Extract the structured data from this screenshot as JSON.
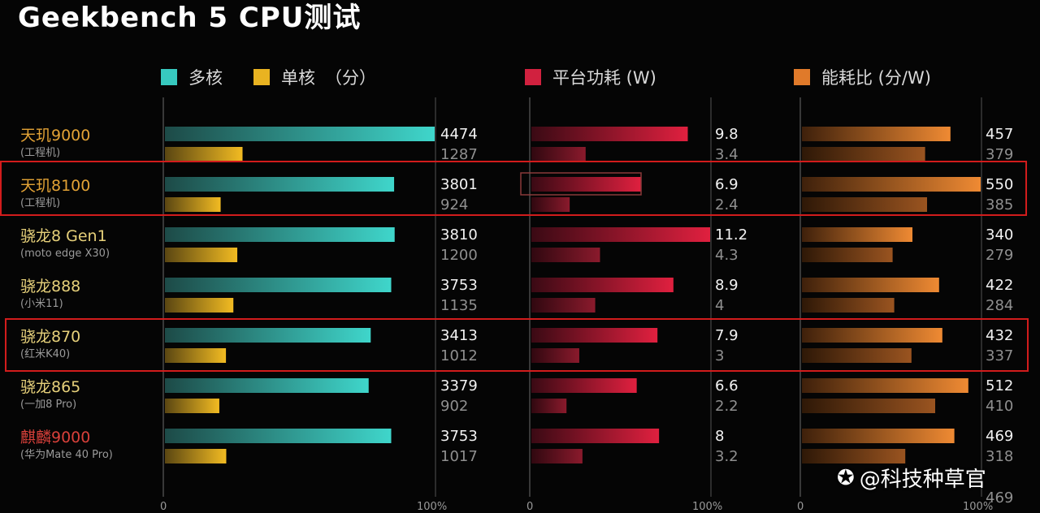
{
  "title": "Geekbench 5 CPU测试",
  "legend": {
    "multi": {
      "label": "多核",
      "color": "#37c9bf"
    },
    "single": {
      "label": "单核",
      "color": "#e9b321"
    },
    "score_unit": "（分）",
    "power": {
      "label": "平台功耗 (W)",
      "color": "#d1213f"
    },
    "efficiency": {
      "label": "能耗比 (分/W)",
      "color": "#e07a2a"
    }
  },
  "axis_ticks": {
    "scores": [
      "0",
      "100%"
    ],
    "power": [
      "0",
      "100%"
    ],
    "efficiency": [
      "0",
      "100%"
    ]
  },
  "watermark": {
    "icon": "weibo-icon",
    "text": "@科技种草官"
  },
  "highlighted_chips": [
    "天玑8100",
    "骁龙870"
  ],
  "chart_data": [
    {
      "type": "bar",
      "title": "Geekbench 5 CPU测试",
      "categories": [
        "天玑9000",
        "天玑8100",
        "骁龙8 Gen1",
        "骁龙888",
        "骁龙870",
        "骁龙865",
        "麒麟9000"
      ],
      "category_sublabels": [
        "(工程机)",
        "(工程机)",
        "(moto edge X30)",
        "(小米11)",
        "(红米K40)",
        "(一加8 Pro)",
        "(华为Mate 40 Pro)"
      ],
      "series": [
        {
          "name": "多核",
          "values": [
            4474,
            3801,
            3810,
            3753,
            3413,
            3379,
            3753
          ]
        },
        {
          "name": "单核",
          "values": [
            1287,
            924,
            1200,
            1135,
            1012,
            902,
            1017
          ]
        }
      ],
      "unit": "（分）",
      "ylim": [
        0,
        4474
      ]
    },
    {
      "type": "bar",
      "title": "平台功耗 (W)",
      "categories": [
        "天玑9000",
        "天玑8100",
        "骁龙8 Gen1",
        "骁龙888",
        "骁龙870",
        "骁龙865",
        "麒麟9000"
      ],
      "series": [
        {
          "name": "多核",
          "values": [
            9.8,
            6.9,
            11.2,
            8.9,
            7.9,
            6.6,
            8.0
          ]
        },
        {
          "name": "单核",
          "values": [
            3.4,
            2.4,
            4.3,
            4.0,
            3.0,
            2.2,
            3.2
          ]
        }
      ],
      "ylim": [
        0,
        11.2
      ]
    },
    {
      "type": "bar",
      "title": "能耗比 (分/W)",
      "categories": [
        "天玑9000",
        "天玑8100",
        "骁龙8 Gen1",
        "骁龙888",
        "骁龙870",
        "骁龙865",
        "麒麟9000"
      ],
      "series": [
        {
          "name": "多核",
          "values": [
            457,
            550,
            340,
            422,
            432,
            512,
            469
          ]
        },
        {
          "name": "单核",
          "values": [
            379,
            385,
            279,
            284,
            337,
            410,
            318
          ]
        }
      ],
      "ylim": [
        0,
        550
      ]
    }
  ],
  "extra_label": "469"
}
